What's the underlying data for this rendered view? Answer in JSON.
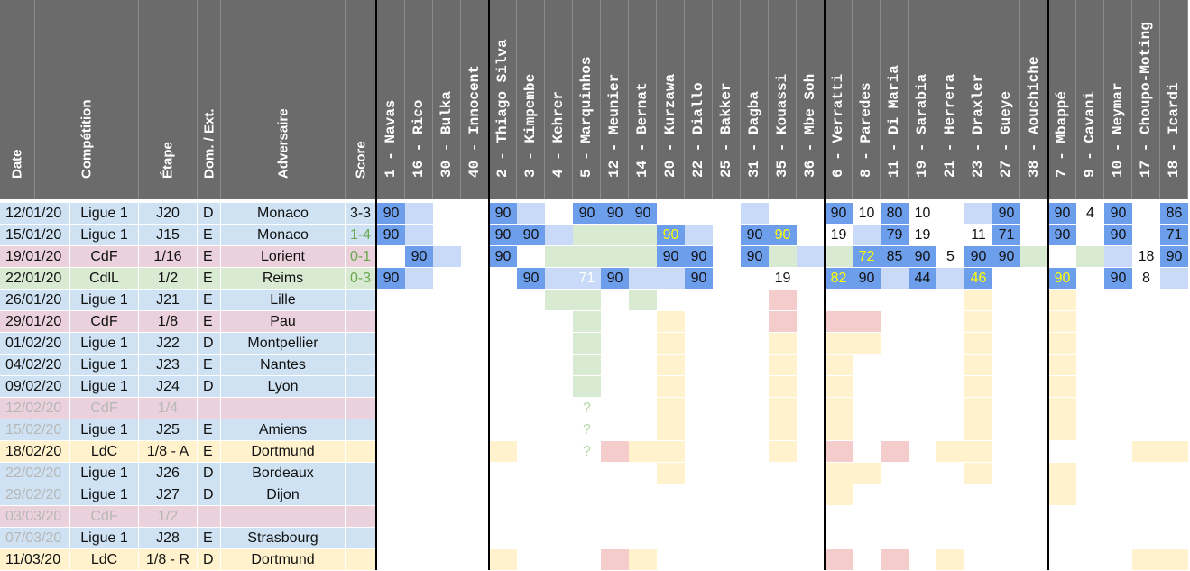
{
  "headers": {
    "date": "Date",
    "competition": "Compétition",
    "stage": "Étape",
    "home_away": "Dom. / Ext.",
    "opponent": "Adversaire",
    "score": "Score"
  },
  "players": [
    "1 - Navas",
    "16 - Rico",
    "30 - Bulka",
    "40 - Innocent",
    "2 - Thiago Silva",
    "3 - Kimpembe",
    "4 - Kehrer",
    "5 - Marquinhos",
    "12 - Meunier",
    "14 - Bernat",
    "20 - Kurzawa",
    "22 - Diallo",
    "25 - Bakker",
    "31 - Dagba",
    "35 - Kouassi",
    "36 - Mbe Soh",
    "6 - Verratti",
    "8 - Paredes",
    "11 - Di Maria",
    "19 - Sarabia",
    "21 - Herrera",
    "23 - Draxler",
    "27 - Gueye",
    "38 - Aouchiche",
    "7 - Mbappé",
    "9 - Cavani",
    "10 - Neymar",
    "17 - Choupo-Moting",
    "18 - Icardi"
  ],
  "matches": [
    {
      "date": "12/01/20",
      "competition": "Ligue 1",
      "stage": "J20",
      "home_away": "D",
      "opponent": "Monaco",
      "score": "3-3",
      "type": "league",
      "dimmed": false
    },
    {
      "date": "15/01/20",
      "competition": "Ligue 1",
      "stage": "J15",
      "home_away": "E",
      "opponent": "Monaco",
      "score": "1-4",
      "type": "league",
      "dimmed": false
    },
    {
      "date": "19/01/20",
      "competition": "CdF",
      "stage": "1/16",
      "home_away": "E",
      "opponent": "Lorient",
      "score": "0-1",
      "type": "cdf",
      "dimmed": false
    },
    {
      "date": "22/01/20",
      "competition": "CdlL",
      "stage": "1/2",
      "home_away": "E",
      "opponent": "Reims",
      "score": "0-3",
      "type": "cdl",
      "dimmed": false
    },
    {
      "date": "26/01/20",
      "competition": "Ligue 1",
      "stage": "J21",
      "home_away": "E",
      "opponent": "Lille",
      "score": "",
      "type": "league",
      "dimmed": false
    },
    {
      "date": "29/01/20",
      "competition": "CdF",
      "stage": "1/8",
      "home_away": "E",
      "opponent": "Pau",
      "score": "",
      "type": "cdf",
      "dimmed": false
    },
    {
      "date": "01/02/20",
      "competition": "Ligue 1",
      "stage": "J22",
      "home_away": "D",
      "opponent": "Montpellier",
      "score": "",
      "type": "league",
      "dimmed": false
    },
    {
      "date": "04/02/20",
      "competition": "Ligue 1",
      "stage": "J23",
      "home_away": "E",
      "opponent": "Nantes",
      "score": "",
      "type": "league",
      "dimmed": false
    },
    {
      "date": "09/02/20",
      "competition": "Ligue 1",
      "stage": "J24",
      "home_away": "D",
      "opponent": "Lyon",
      "score": "",
      "type": "league",
      "dimmed": false
    },
    {
      "date": "12/02/20",
      "competition": "CdF",
      "stage": "1/4",
      "home_away": "",
      "opponent": "",
      "score": "",
      "type": "cdf",
      "dimmed": true
    },
    {
      "date": "15/02/20",
      "competition": "Ligue 1",
      "stage": "J25",
      "home_away": "E",
      "opponent": "Amiens",
      "score": "",
      "type": "league",
      "dimmed": true
    },
    {
      "date": "18/02/20",
      "competition": "LdC",
      "stage": "1/8 - A",
      "home_away": "E",
      "opponent": "Dortmund",
      "score": "",
      "type": "ldc",
      "dimmed": false
    },
    {
      "date": "22/02/20",
      "competition": "Ligue 1",
      "stage": "J26",
      "home_away": "D",
      "opponent": "Bordeaux",
      "score": "",
      "type": "league",
      "dimmed": true
    },
    {
      "date": "29/02/20",
      "competition": "Ligue 1",
      "stage": "J27",
      "home_away": "D",
      "opponent": "Dijon",
      "score": "",
      "type": "league",
      "dimmed": true
    },
    {
      "date": "03/03/20",
      "competition": "CdF",
      "stage": "1/2",
      "home_away": "",
      "opponent": "",
      "score": "",
      "type": "cdf",
      "dimmed": true
    },
    {
      "date": "07/03/20",
      "competition": "Ligue 1",
      "stage": "J28",
      "home_away": "E",
      "opponent": "Strasbourg",
      "score": "",
      "type": "league",
      "dimmed": true
    },
    {
      "date": "11/03/20",
      "competition": "LdC",
      "stage": "1/8 - R",
      "home_away": "D",
      "opponent": "Dortmund",
      "score": "",
      "type": "ldc",
      "dimmed": false
    }
  ],
  "grid": [
    [
      "s90",
      "l",
      "",
      "",
      "s90",
      "l",
      "",
      "s90",
      "s90",
      "s90",
      "",
      "",
      "",
      "l",
      "",
      "",
      "s90",
      "10",
      "s80",
      "10",
      "",
      "l",
      "s90",
      "",
      "s90",
      "4",
      "s90",
      "",
      "s86"
    ],
    [
      "s90",
      "l",
      "",
      "",
      "s90",
      "s90",
      "l",
      "g",
      "g",
      "g",
      "y90",
      "l",
      "",
      "s90",
      "y90",
      "",
      "19",
      "l",
      "s79",
      "19",
      "",
      "11",
      "s71",
      "",
      "s90",
      "",
      "s90",
      "",
      "s71"
    ],
    [
      "",
      "s90",
      "l",
      "",
      "s90",
      "",
      "g",
      "g",
      "g",
      "g",
      "s90",
      "s90",
      "",
      "s90",
      "g",
      "l",
      "g",
      "y72",
      "s85",
      "s90",
      "5",
      "s90",
      "s90",
      "g",
      "",
      "g",
      "l",
      "18",
      "s90"
    ],
    [
      "s90",
      "l",
      "",
      "",
      "",
      "s90",
      "l",
      "l71",
      "s90",
      "l",
      "l",
      "s90",
      "",
      "",
      "19",
      "",
      "y82",
      "s90",
      "l",
      "s44",
      "l",
      "y46",
      "",
      "",
      "y90",
      "",
      "s90",
      "8",
      "l"
    ],
    [
      "",
      "",
      "",
      "",
      "",
      "",
      "g",
      "g",
      "",
      "g",
      "",
      "",
      "",
      "",
      "r",
      "",
      "",
      "",
      "",
      "",
      "",
      "y",
      "",
      "",
      "y",
      "",
      "",
      "",
      ""
    ],
    [
      "",
      "",
      "",
      "",
      "",
      "",
      "",
      "g",
      "",
      "",
      "y",
      "",
      "",
      "",
      "r",
      "",
      "r",
      "r",
      "",
      "",
      "",
      "y",
      "",
      "",
      "y",
      "",
      "",
      "",
      ""
    ],
    [
      "",
      "",
      "",
      "",
      "",
      "",
      "",
      "g",
      "",
      "",
      "y",
      "",
      "",
      "",
      "y",
      "",
      "y",
      "y",
      "",
      "",
      "",
      "y",
      "",
      "",
      "y",
      "",
      "",
      "",
      ""
    ],
    [
      "",
      "",
      "",
      "",
      "",
      "",
      "",
      "g",
      "",
      "",
      "y",
      "",
      "",
      "",
      "y",
      "",
      "y",
      "",
      "",
      "",
      "",
      "y",
      "",
      "",
      "y",
      "",
      "",
      "",
      ""
    ],
    [
      "",
      "",
      "",
      "",
      "",
      "",
      "",
      "g",
      "",
      "",
      "y",
      "",
      "",
      "",
      "y",
      "",
      "y",
      "",
      "",
      "",
      "",
      "y",
      "",
      "",
      "y",
      "",
      "",
      "",
      ""
    ],
    [
      "",
      "",
      "",
      "",
      "",
      "",
      "",
      "?",
      "",
      "",
      "y",
      "",
      "",
      "",
      "y",
      "",
      "y",
      "",
      "",
      "",
      "",
      "y",
      "",
      "",
      "y",
      "",
      "",
      "",
      ""
    ],
    [
      "",
      "",
      "",
      "",
      "",
      "",
      "",
      "?",
      "",
      "",
      "y",
      "",
      "",
      "",
      "y",
      "",
      "y",
      "",
      "",
      "",
      "",
      "y",
      "",
      "",
      "y",
      "",
      "",
      "",
      ""
    ],
    [
      "",
      "",
      "",
      "",
      "y",
      "",
      "",
      "?",
      "r",
      "y",
      "y",
      "",
      "",
      "",
      "y",
      "",
      "r",
      "",
      "r",
      "",
      "y",
      "y",
      "",
      "",
      "",
      "",
      "",
      "y",
      "y"
    ],
    [
      "",
      "",
      "",
      "",
      "",
      "",
      "",
      "",
      "",
      "",
      "y",
      "",
      "",
      "",
      "",
      "",
      "y",
      "y",
      "",
      "",
      "",
      "y",
      "",
      "",
      "y",
      "",
      "",
      "",
      ""
    ],
    [
      "",
      "",
      "",
      "",
      "",
      "",
      "",
      "",
      "",
      "",
      "",
      "",
      "",
      "",
      "",
      "",
      "y",
      "",
      "",
      "",
      "",
      "",
      "",
      "",
      "y",
      "",
      "",
      "",
      ""
    ],
    [
      "",
      "",
      "",
      "",
      "",
      "",
      "",
      "",
      "",
      "",
      "",
      "",
      "",
      "",
      "",
      "",
      "",
      "",
      "",
      "",
      "",
      "",
      "",
      "",
      "",
      "",
      "",
      "",
      ""
    ],
    [
      "",
      "",
      "",
      "",
      "",
      "",
      "",
      "",
      "",
      "",
      "",
      "",
      "",
      "",
      "",
      "",
      "",
      "",
      "",
      "",
      "",
      "",
      "",
      "",
      "",
      "",
      "",
      "",
      ""
    ],
    [
      "",
      "",
      "",
      "",
      "y",
      "",
      "",
      "",
      "r",
      "y",
      "",
      "",
      "",
      "",
      "",
      "",
      "r",
      "",
      "r",
      "",
      "y",
      "",
      "",
      "",
      "",
      "",
      "",
      "y",
      "y"
    ]
  ],
  "colors": {
    "header_bg": "#6b6b6b",
    "league_bg": "#cfe2f3",
    "cdf_bg": "#ead1dc",
    "cdl_bg": "#d9ead3",
    "ldc_bg": "#fff2cc",
    "starter_blue": "#6d9eeb",
    "light_blue": "#c9daf8",
    "light_green": "#d9ead3",
    "light_yellow": "#fff2cc",
    "light_red": "#f4cccc",
    "yellow_text": "#ffff00",
    "win_green": "#6aa84f",
    "dim_text": "#b7b7b7"
  }
}
